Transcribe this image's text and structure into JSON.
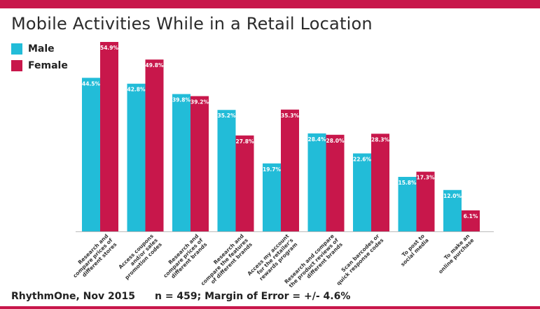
{
  "header": {
    "title": "Mobile Activities While in a Retail Location"
  },
  "legend": {
    "male_label": "Male",
    "female_label": "Female"
  },
  "colors": {
    "male": "#22bcd8",
    "female": "#c8174b",
    "accent_bar": "#c8174b"
  },
  "chart_data": {
    "type": "bar",
    "title": "Mobile Activities While in a Retail Location",
    "xlabel": "",
    "ylabel": "",
    "ylim": [
      0,
      60
    ],
    "grid": false,
    "legend_position": "top-left",
    "categories": [
      "Research and compare prices of different stores",
      "Access coupons and/or sales promotion codes",
      "Research and compare prices of different brands",
      "Research and compare the features of different brands",
      "Access my account for the retailer's rewards program",
      "Research and compare the product reviews of different brands",
      "Scan barcodes or quick response codes",
      "To post to social media",
      "To make an online purchase"
    ],
    "category_lines": [
      [
        "Research and",
        "compare prices of",
        "different stores"
      ],
      [
        "Access coupons",
        "and/or sales",
        "promotion codes"
      ],
      [
        "Research and",
        "compare prices of",
        "different brands"
      ],
      [
        "Research and",
        "compare the features",
        "of different brands"
      ],
      [
        "Access my account",
        "for the retailer's",
        "rewards program"
      ],
      [
        "Research and compare",
        "the product reviews of",
        "different brands"
      ],
      [
        "Scan barcodes or",
        "quick response codes"
      ],
      [
        "To post to",
        "social media"
      ],
      [
        "To make an",
        "online purchase"
      ]
    ],
    "series": [
      {
        "name": "Male",
        "values": [
          44.5,
          42.8,
          39.8,
          35.2,
          19.7,
          28.4,
          22.6,
          15.8,
          12.0
        ],
        "labels": [
          "44.5%",
          "42.8%",
          "39.8%",
          "35.2%",
          "19.7%",
          "28.4%",
          "22.6%",
          "15.8%",
          "12.0%"
        ]
      },
      {
        "name": "Female",
        "values": [
          54.9,
          49.8,
          39.2,
          27.8,
          35.3,
          28.0,
          28.3,
          17.3,
          6.1
        ],
        "labels": [
          "54.9%",
          "49.8%",
          "39.2%",
          "27.8%",
          "35.3%",
          "28.0%",
          "28.3%",
          "17.3%",
          "6.1%"
        ]
      }
    ]
  },
  "footer": {
    "source": "RhythmOne, Nov 2015",
    "note": "n = 459; Margin of Error = +/- 4.6%"
  }
}
